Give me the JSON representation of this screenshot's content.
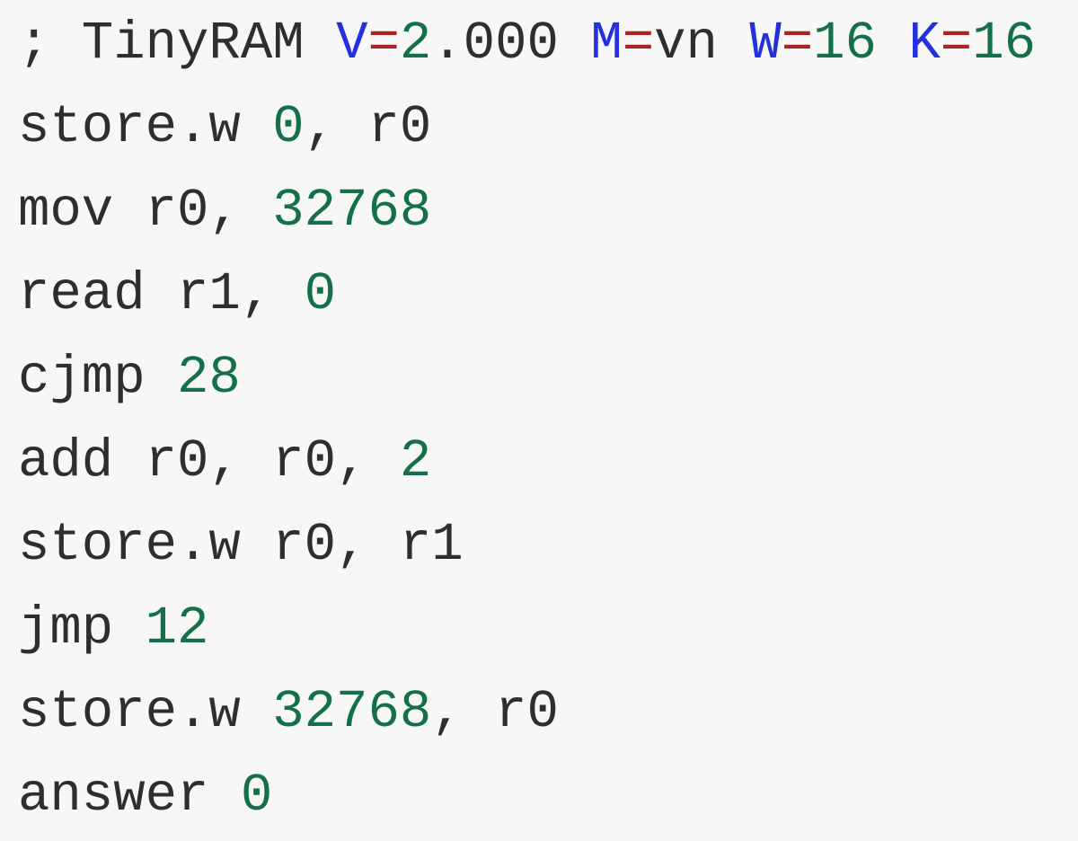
{
  "colors": {
    "background": "#f7f7f7",
    "plain": "#2e2e2e",
    "name": "#2230dd",
    "operator": "#aa2222",
    "number": "#15704a"
  },
  "code": {
    "lines": [
      {
        "tokens": [
          {
            "text": "; TinyRAM ",
            "type": "plain"
          },
          {
            "text": "V",
            "type": "name"
          },
          {
            "text": "=",
            "type": "operator"
          },
          {
            "text": "2",
            "type": "number"
          },
          {
            "text": ".000 ",
            "type": "plain"
          },
          {
            "text": "M",
            "type": "name"
          },
          {
            "text": "=",
            "type": "operator"
          },
          {
            "text": "vn ",
            "type": "plain"
          },
          {
            "text": "W",
            "type": "name"
          },
          {
            "text": "=",
            "type": "operator"
          },
          {
            "text": "16",
            "type": "number"
          },
          {
            "text": " ",
            "type": "plain"
          },
          {
            "text": "K",
            "type": "name"
          },
          {
            "text": "=",
            "type": "operator"
          },
          {
            "text": "16",
            "type": "number"
          }
        ]
      },
      {
        "tokens": [
          {
            "text": "store.w ",
            "type": "plain"
          },
          {
            "text": "0",
            "type": "number"
          },
          {
            "text": ", r0",
            "type": "plain"
          }
        ]
      },
      {
        "tokens": [
          {
            "text": "mov r0, ",
            "type": "plain"
          },
          {
            "text": "32768",
            "type": "number"
          }
        ]
      },
      {
        "tokens": [
          {
            "text": "read r1, ",
            "type": "plain"
          },
          {
            "text": "0",
            "type": "number"
          }
        ]
      },
      {
        "tokens": [
          {
            "text": "cjmp ",
            "type": "plain"
          },
          {
            "text": "28",
            "type": "number"
          }
        ]
      },
      {
        "tokens": [
          {
            "text": "add r0, r0, ",
            "type": "plain"
          },
          {
            "text": "2",
            "type": "number"
          }
        ]
      },
      {
        "tokens": [
          {
            "text": "store.w r0, r1",
            "type": "plain"
          }
        ]
      },
      {
        "tokens": [
          {
            "text": "jmp ",
            "type": "plain"
          },
          {
            "text": "12",
            "type": "number"
          }
        ]
      },
      {
        "tokens": [
          {
            "text": "store.w ",
            "type": "plain"
          },
          {
            "text": "32768",
            "type": "number"
          },
          {
            "text": ", r0",
            "type": "plain"
          }
        ]
      },
      {
        "tokens": [
          {
            "text": "answer ",
            "type": "plain"
          },
          {
            "text": "0",
            "type": "number"
          }
        ]
      }
    ]
  }
}
